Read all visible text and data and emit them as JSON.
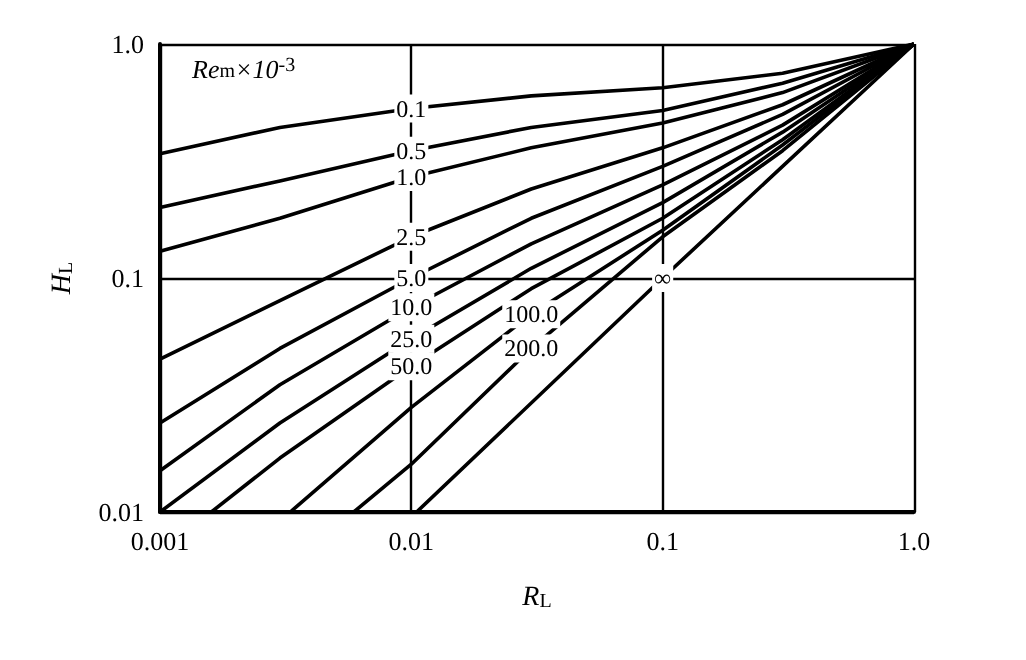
{
  "chart_data": {
    "type": "line",
    "xlabel": "R$_{L}$",
    "ylabel": "H$_{L}$",
    "legend_title": "Re$_{m}$×10$^{-3}$",
    "log": "xy",
    "grid": true,
    "legend": false,
    "marker": "none",
    "line_style": "solid",
    "xlim": [
      0.001,
      1
    ],
    "ylim": [
      0.01,
      1
    ],
    "xticks": [
      0.001,
      0.01,
      0.1,
      {
        "value": 1,
        "label": "1.0"
      }
    ],
    "yticks": [
      0.01,
      0.1,
      {
        "value": 1,
        "label": "1.0"
      }
    ],
    "series": [
      {
        "name": "0.1",
        "color": "#000000",
        "x": [
          0.001,
          0.003,
          0.01,
          0.03,
          0.1,
          0.3,
          1
        ],
        "values": [
          0.34,
          0.44,
          0.53,
          0.6,
          0.65,
          0.75,
          1
        ]
      },
      {
        "name": "0.5",
        "color": "#000000",
        "x": [
          0.001,
          0.003,
          0.01,
          0.03,
          0.1,
          0.3,
          1
        ],
        "values": [
          0.2,
          0.26,
          0.35,
          0.44,
          0.52,
          0.68,
          1
        ]
      },
      {
        "name": "1.0",
        "color": "#000000",
        "x": [
          0.001,
          0.003,
          0.01,
          0.03,
          0.1,
          0.3,
          1
        ],
        "values": [
          0.13,
          0.18,
          0.27,
          0.36,
          0.46,
          0.62,
          1
        ]
      },
      {
        "name": "2.5",
        "color": "#000000",
        "x": [
          0.001,
          0.003,
          0.01,
          0.03,
          0.1,
          0.3,
          1
        ],
        "values": [
          0.045,
          0.08,
          0.15,
          0.24,
          0.36,
          0.55,
          1
        ]
      },
      {
        "name": "5.0",
        "color": "#000000",
        "x": [
          0.001,
          0.003,
          0.01,
          0.03,
          0.1,
          0.3,
          1
        ],
        "values": [
          0.024,
          0.05,
          0.1,
          0.18,
          0.3,
          0.5,
          1
        ]
      },
      {
        "name": "10.0",
        "color": "#000000",
        "x": [
          0.001,
          0.003,
          0.01,
          0.03,
          0.1,
          0.3,
          1
        ],
        "values": [
          0.015,
          0.035,
          0.075,
          0.14,
          0.25,
          0.45,
          1
        ]
      },
      {
        "name": "25.0",
        "color": "#000000",
        "x": [
          0.001,
          0.003,
          0.01,
          0.03,
          0.1,
          0.3,
          1
        ],
        "values": [
          0.01,
          0.024,
          0.055,
          0.11,
          0.21,
          0.42,
          1
        ]
      },
      {
        "name": "50.0",
        "color": "#000000",
        "x": [
          0.0016,
          0.003,
          0.01,
          0.03,
          0.1,
          0.3,
          1
        ],
        "values": [
          0.01,
          0.017,
          0.042,
          0.09,
          0.18,
          0.39,
          1
        ]
      },
      {
        "name": "100.0",
        "color": "#000000",
        "x": [
          0.0033,
          0.01,
          0.03,
          0.1,
          0.3,
          1
        ],
        "values": [
          0.01,
          0.028,
          0.07,
          0.16,
          0.37,
          1
        ]
      },
      {
        "name": "200.0",
        "color": "#000000",
        "x": [
          0.0059,
          0.01,
          0.03,
          0.1,
          0.3,
          1
        ],
        "values": [
          0.01,
          0.016,
          0.05,
          0.15,
          0.35,
          1
        ]
      },
      {
        "name": "∞",
        "color": "#000000",
        "x": [
          0.0105,
          0.1,
          1
        ],
        "values": [
          0.01,
          0.1,
          1
        ]
      }
    ]
  }
}
